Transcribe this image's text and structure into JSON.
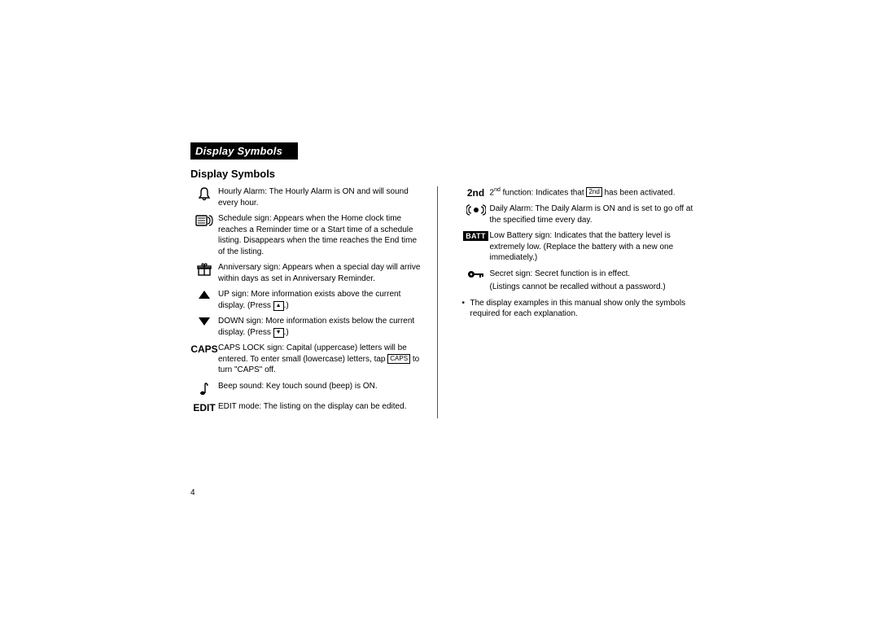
{
  "banner": "Display Symbols",
  "heading": "Display Symbols",
  "page_number": "4",
  "colors": {
    "bg": "#ffffff",
    "text": "#000000",
    "banner_bg": "#000000",
    "banner_text": "#ffffff"
  },
  "left_items": [
    {
      "icon": "bell",
      "desc_parts": [
        {
          "t": "Hourly Alarm: The Hourly Alarm is ON and will sound every hour."
        }
      ]
    },
    {
      "icon": "schedule",
      "desc_parts": [
        {
          "t": "Schedule sign: Appears when the Home clock time reaches a Reminder time or a Start time of a schedule listing. Disappears when the time reaches the End time of the listing."
        }
      ]
    },
    {
      "icon": "gift",
      "desc_parts": [
        {
          "t": "Anniversary sign: Appears when a special day will arrive within days as set in Anniversary Reminder."
        }
      ]
    },
    {
      "icon": "up",
      "desc_parts": [
        {
          "t": "UP sign: More information exists above the current display. (Press "
        },
        {
          "key_glyph": "▲"
        },
        {
          "t": ".)"
        }
      ]
    },
    {
      "icon": "down",
      "desc_parts": [
        {
          "t": "DOWN sign: More information exists below the current display. (Press "
        },
        {
          "key_glyph": "▼"
        },
        {
          "t": ".)"
        }
      ]
    },
    {
      "icon": "text",
      "icon_label": "CAPS",
      "desc_parts": [
        {
          "t": "CAPS LOCK sign: Capital (uppercase) letters will be entered. To enter small (lowercase) letters, tap "
        },
        {
          "key": "CAPS"
        },
        {
          "t": " to turn \"CAPS\" off."
        }
      ]
    },
    {
      "icon": "note",
      "desc_parts": [
        {
          "t": "Beep sound: Key touch sound (beep) is ON."
        }
      ]
    },
    {
      "icon": "text",
      "icon_label": "EDIT",
      "desc_parts": [
        {
          "t": "EDIT mode: The listing on the display can be edited."
        }
      ]
    }
  ],
  "right_items": [
    {
      "icon": "text",
      "icon_label": "2nd",
      "desc_parts": [
        {
          "t": "2"
        },
        {
          "sup": "nd"
        },
        {
          "t": " function: Indicates that "
        },
        {
          "key": "2nd"
        },
        {
          "t": " has been activated."
        }
      ]
    },
    {
      "icon": "daily-alarm",
      "desc_parts": [
        {
          "t": "Daily Alarm: The Daily Alarm is ON and is set to go off at the specified time every day."
        }
      ]
    },
    {
      "icon": "batt",
      "icon_label": "BATT",
      "desc_parts": [
        {
          "t": "Low Battery sign: Indicates that the battery level is extremely low. (Replace the battery with a new one immediately.)"
        }
      ]
    },
    {
      "icon": "key",
      "desc_parts": [
        {
          "t": "Secret sign: Secret function is in effect."
        }
      ],
      "after_line": "(Listings cannot be recalled without a password.)"
    }
  ],
  "note": "The display examples in this manual show only the symbols required for each explanation."
}
